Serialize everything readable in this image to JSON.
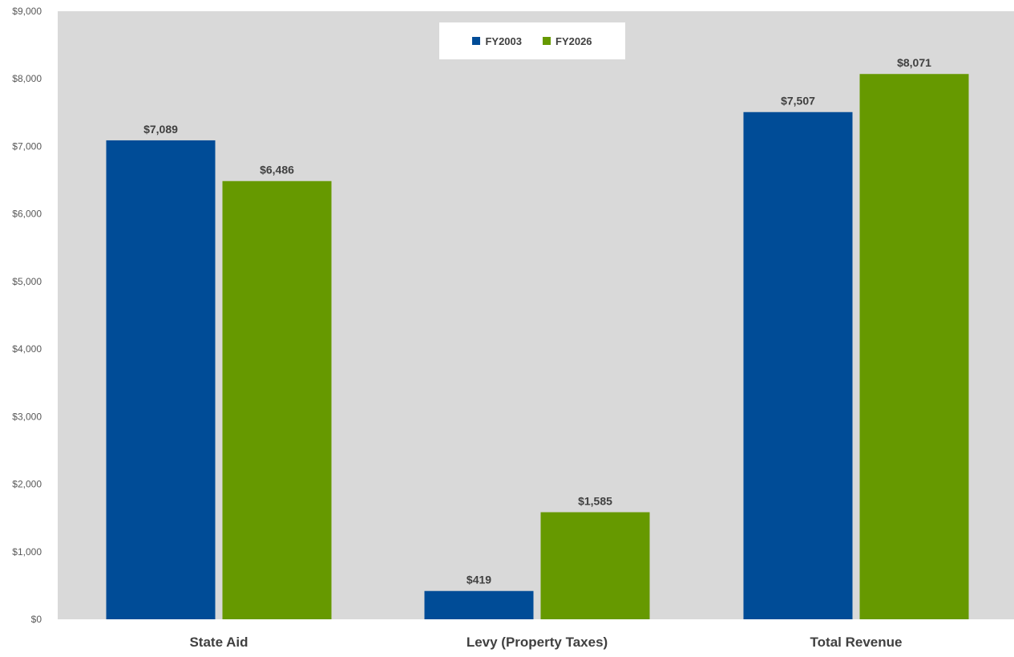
{
  "colors": {
    "plot_background": "#d9d9d9",
    "axis_text": "#595959",
    "category_text": "#404040",
    "label_text": "#404040"
  },
  "chart_data": {
    "type": "bar",
    "categories": [
      "State Aid",
      "Levy (Property Taxes)",
      "Total Revenue"
    ],
    "series": [
      {
        "name": "FY2003",
        "color": "#004c97",
        "values": [
          7089,
          419,
          7507
        ],
        "labels": [
          "$7,089",
          "$419",
          "$7,507"
        ]
      },
      {
        "name": "FY2026",
        "color": "#669900",
        "values": [
          6486,
          1585,
          8071
        ],
        "labels": [
          "$6,486",
          "$1,585",
          "$8,071"
        ]
      }
    ],
    "ylim": [
      0,
      9000
    ],
    "yticks": [
      0,
      1000,
      2000,
      3000,
      4000,
      5000,
      6000,
      7000,
      8000,
      9000
    ],
    "ytick_labels": [
      "$0",
      "$1,000",
      "$2,000",
      "$3,000",
      "$4,000",
      "$5,000",
      "$6,000",
      "$7,000",
      "$8,000",
      "$9,000"
    ],
    "grid": false,
    "legend_position": "top-center"
  }
}
